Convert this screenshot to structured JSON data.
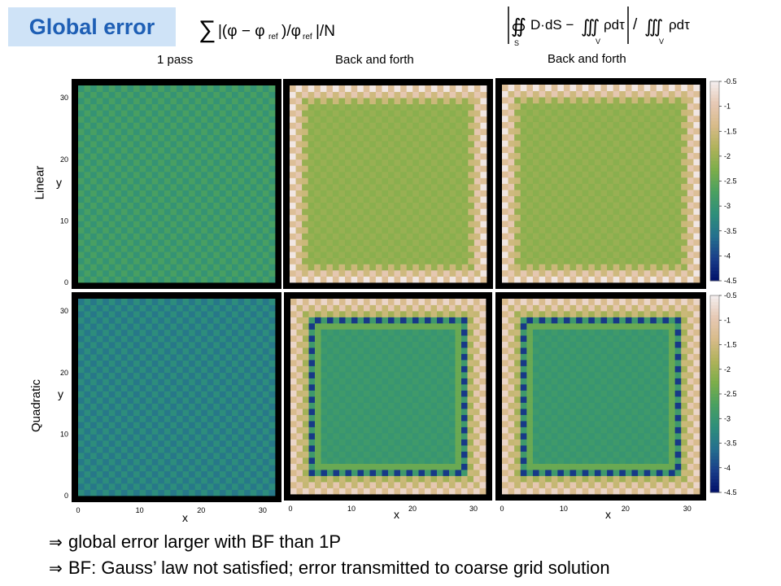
{
  "title": "Global error",
  "formulas": {
    "left": "∑|(φ − φref) / φref| / N",
    "right": "|∯S D·dS − ∭V ρdτ| / ∭V ρdτ"
  },
  "column_labels": [
    "1 pass",
    "Back and forth",
    "Back and forth"
  ],
  "row_labels": [
    "Linear",
    "Quadratic"
  ],
  "axis_letters": {
    "x": "x",
    "y": "y"
  },
  "bullets": [
    "global error larger with BF than 1P",
    "BF: Gauss’ law not satisfied; error transmitted to coarse grid solution"
  ],
  "bullet_symbol": "⇒",
  "colors": {
    "title_bg": "#cfe3f7",
    "title_text": "#1e5fb5",
    "colormap": [
      "#00106a",
      "#1a3e8a",
      "#24708e",
      "#2e8f7b",
      "#4aa060",
      "#7cae4a",
      "#b0b25a",
      "#d8bb8a",
      "#e7c9b5",
      "#f4efef"
    ]
  },
  "chart_data": {
    "type": "heatmap",
    "grid_size": 32,
    "xlim": [
      0,
      32
    ],
    "ylim": [
      0,
      32
    ],
    "x_ticks": [
      0,
      10,
      20,
      30
    ],
    "y_ticks": [
      0,
      10,
      20,
      30
    ],
    "xlabel": "x",
    "ylabel": "y",
    "colorbar": {
      "range": [
        -4.5,
        -0.5
      ],
      "ticks": [
        -0.5,
        -1,
        -1.5,
        -2,
        -2.5,
        -3,
        -3.5,
        -4,
        -4.5
      ],
      "tick_labels": [
        "-0.5",
        "-1",
        "-1.5",
        "-2",
        "-2.5",
        "-3",
        "-3.5",
        "-4",
        "-4.5"
      ]
    },
    "panels": [
      {
        "row": "Linear",
        "column": "1 pass",
        "pattern": "checker",
        "base": -2.9,
        "amp": 0.15,
        "show_y": true,
        "show_x": false,
        "colorbar": false
      },
      {
        "row": "Linear",
        "column": "Back and forth",
        "pattern": "bf-linear",
        "base": -2.1,
        "amp": 0.15,
        "show_y": false,
        "show_x": false,
        "colorbar": false
      },
      {
        "row": "Linear",
        "column": "Back and forth",
        "pattern": "bf-linear",
        "base": -2.1,
        "amp": 0.15,
        "show_y": false,
        "show_x": false,
        "colorbar": true
      },
      {
        "row": "Quadratic",
        "column": "1 pass",
        "pattern": "checker",
        "base": -3.35,
        "amp": 0.15,
        "show_y": true,
        "show_x": true,
        "colorbar": false
      },
      {
        "row": "Quadratic",
        "column": "Back and forth",
        "pattern": "bf-quad",
        "base": -2.95,
        "amp": 0.12,
        "show_y": false,
        "show_x": true,
        "colorbar": false
      },
      {
        "row": "Quadratic",
        "column": "Back and forth",
        "pattern": "bf-quad",
        "base": -2.95,
        "amp": 0.12,
        "show_y": false,
        "show_x": true,
        "colorbar": true
      }
    ]
  }
}
